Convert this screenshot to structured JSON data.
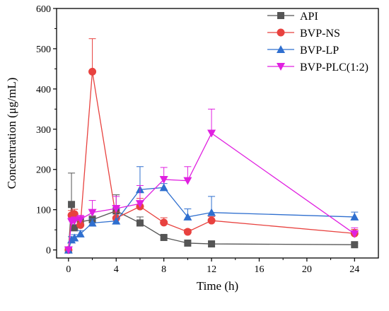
{
  "chart_data": {
    "type": "line",
    "xlabel": "Time (h)",
    "ylabel": "Concentration (μg/mL)",
    "xlim": [
      -1,
      26
    ],
    "ylim": [
      -20,
      600
    ],
    "xticks": [
      0,
      4,
      8,
      12,
      16,
      20,
      24
    ],
    "yticks": [
      0,
      100,
      200,
      300,
      400,
      500,
      600
    ],
    "legend_position": "top-right",
    "error_bars": "positive only",
    "series": [
      {
        "name": "API",
        "color": "#555555",
        "marker": "square",
        "x": [
          0,
          0.25,
          0.5,
          1,
          2,
          4,
          6,
          8,
          10,
          12,
          24
        ],
        "y": [
          0,
          113,
          55,
          70,
          75,
          97,
          67,
          31,
          17,
          15,
          13
        ],
        "err": [
          0,
          78,
          20,
          8,
          10,
          40,
          15,
          5,
          4,
          4,
          3
        ]
      },
      {
        "name": "BVP-NS",
        "color": "#e8423f",
        "marker": "circle",
        "x": [
          0,
          0.25,
          0.5,
          1,
          2,
          4,
          6,
          8,
          10,
          12,
          24
        ],
        "y": [
          0,
          86,
          89,
          62,
          443,
          79,
          108,
          68,
          45,
          73,
          41
        ],
        "err": [
          0,
          12,
          12,
          10,
          82,
          15,
          20,
          12,
          6,
          10,
          10
        ]
      },
      {
        "name": "BVP-LP",
        "color": "#2f6fcf",
        "marker": "triangle-up",
        "x": [
          0,
          0.25,
          0.5,
          1,
          2,
          4,
          6,
          8,
          10,
          12,
          24
        ],
        "y": [
          0,
          25,
          30,
          40,
          67,
          72,
          150,
          155,
          82,
          93,
          82
        ],
        "err": [
          0,
          8,
          8,
          8,
          10,
          30,
          57,
          10,
          20,
          40,
          12
        ]
      },
      {
        "name": "BVP-PLC(1:2)",
        "color": "#e020e0",
        "marker": "triangle-down",
        "x": [
          0,
          0.25,
          0.5,
          1,
          2,
          4,
          6,
          8,
          10,
          12,
          24
        ],
        "y": [
          0,
          70,
          72,
          76,
          93,
          103,
          115,
          175,
          172,
          290,
          40
        ],
        "err": [
          0,
          10,
          10,
          10,
          30,
          30,
          45,
          30,
          35,
          60,
          15
        ]
      }
    ]
  }
}
